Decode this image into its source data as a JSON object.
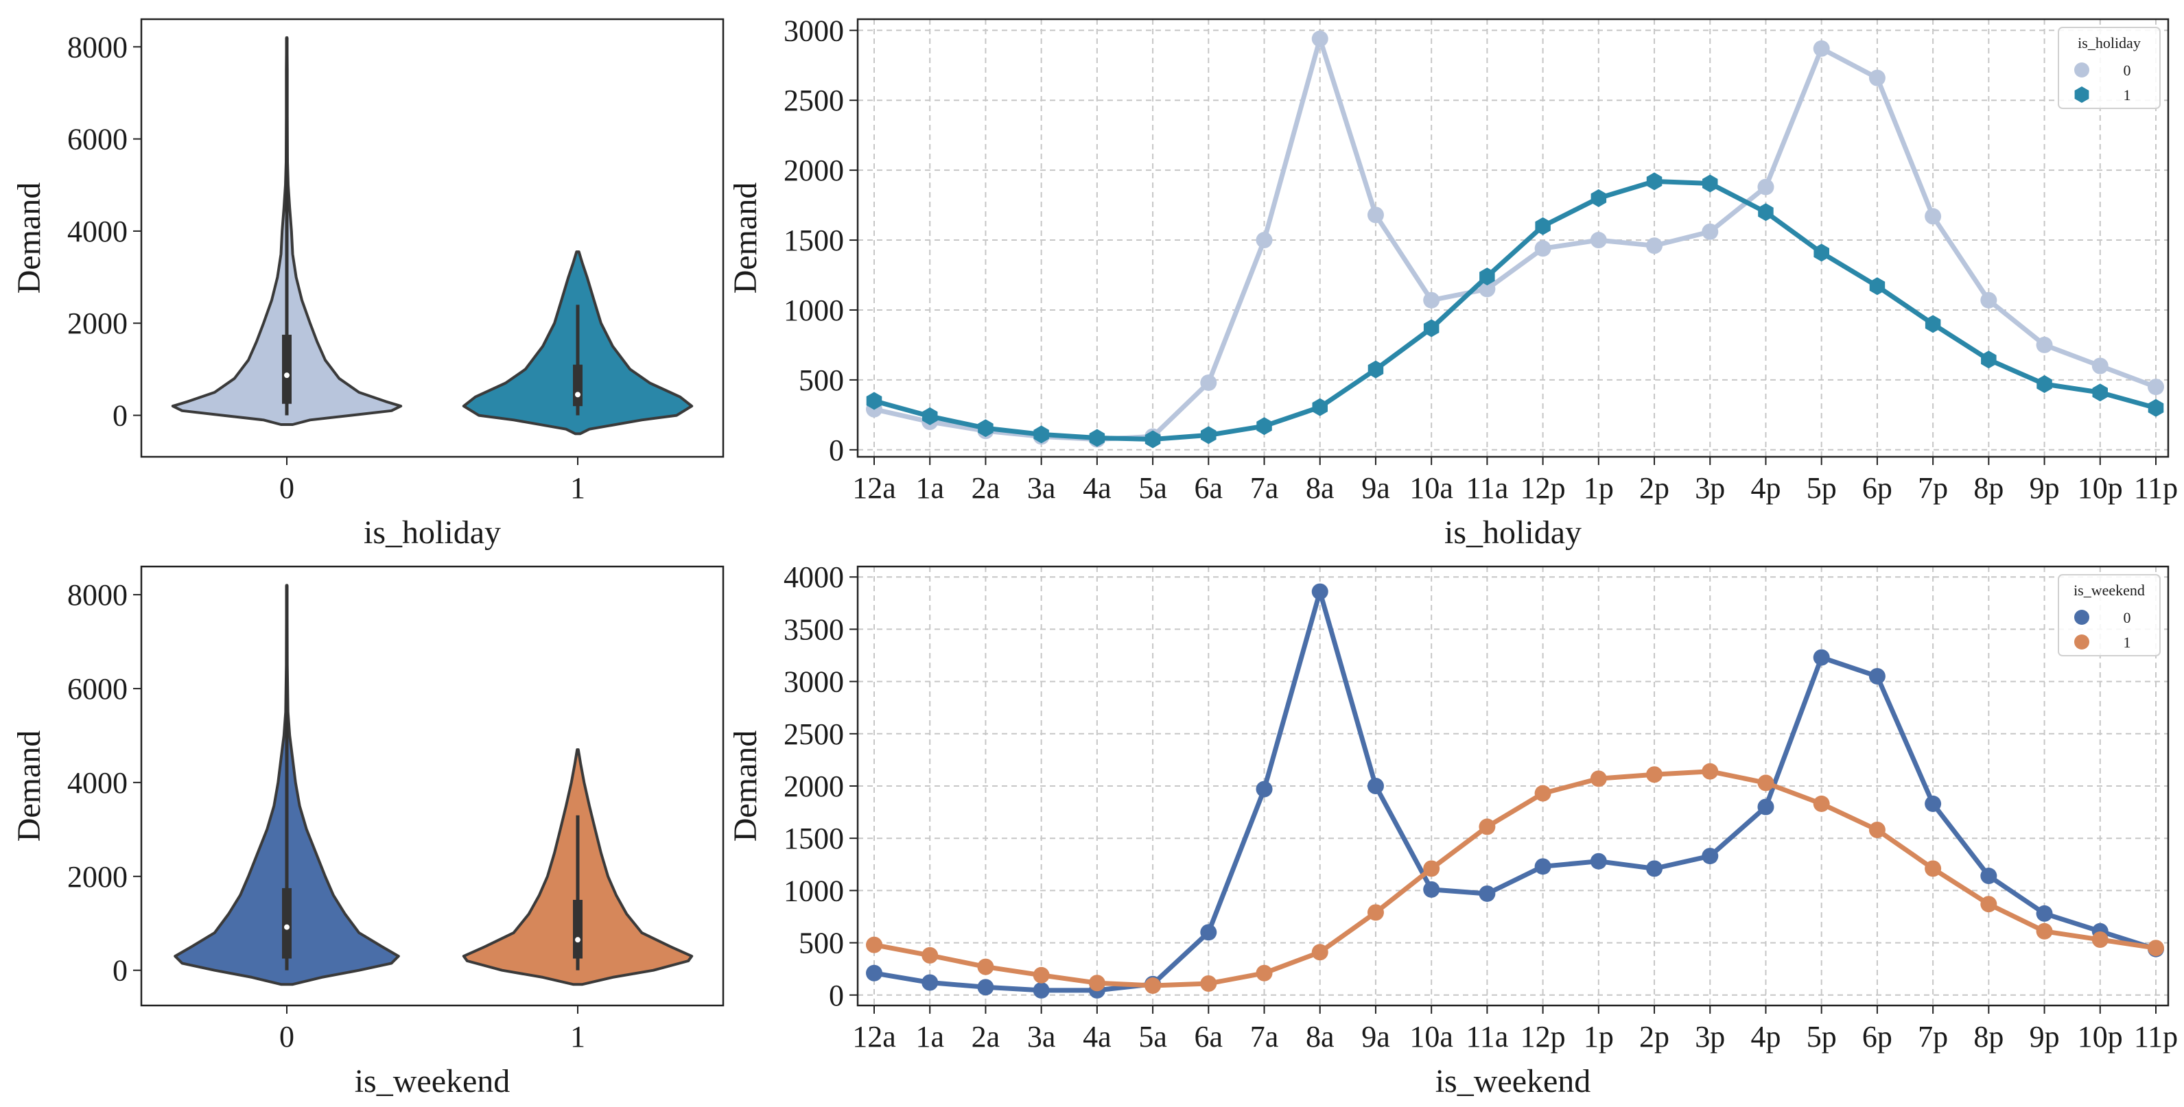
{
  "hours": [
    "12a",
    "1a",
    "2a",
    "3a",
    "4a",
    "5a",
    "6a",
    "7a",
    "8a",
    "9a",
    "10a",
    "11a",
    "12p",
    "1p",
    "2p",
    "3p",
    "4p",
    "5p",
    "6p",
    "7p",
    "8p",
    "9p",
    "10p",
    "11p"
  ],
  "chart_data": [
    {
      "id": "violin_holiday",
      "type": "violin",
      "xlabel": "is_holiday",
      "ylabel": "Demand",
      "categories": [
        "0",
        "1"
      ],
      "ylim": [
        -900,
        8600
      ],
      "yticks": [
        0,
        2000,
        4000,
        6000,
        8000
      ],
      "series": [
        {
          "name": "0",
          "color": "#b8c5dc",
          "profile": [
            [
              -200,
              0.05
            ],
            [
              -100,
              0.2
            ],
            [
              0,
              0.55
            ],
            [
              100,
              0.9
            ],
            [
              200,
              0.98
            ],
            [
              300,
              0.85
            ],
            [
              500,
              0.62
            ],
            [
              800,
              0.45
            ],
            [
              1200,
              0.33
            ],
            [
              1600,
              0.26
            ],
            [
              2000,
              0.2
            ],
            [
              2500,
              0.13
            ],
            [
              3000,
              0.08
            ],
            [
              3500,
              0.05
            ],
            [
              4000,
              0.04
            ],
            [
              4500,
              0.025
            ],
            [
              5000,
              0.012
            ],
            [
              5500,
              0.006
            ],
            [
              6500,
              0.004
            ],
            [
              7500,
              0.004
            ],
            [
              8200,
              0.002
            ]
          ],
          "box": {
            "min": 0,
            "q1": 250,
            "median": 870,
            "q3": 1750,
            "max": 3800,
            "whisker_top": 8200
          }
        },
        {
          "name": "1",
          "color": "#2a87a8",
          "profile": [
            [
              -400,
              0.02
            ],
            [
              -300,
              0.1
            ],
            [
              -100,
              0.55
            ],
            [
              0,
              0.85
            ],
            [
              200,
              0.98
            ],
            [
              400,
              0.88
            ],
            [
              700,
              0.62
            ],
            [
              1000,
              0.45
            ],
            [
              1500,
              0.3
            ],
            [
              2000,
              0.2
            ],
            [
              2500,
              0.14
            ],
            [
              3000,
              0.08
            ],
            [
              3300,
              0.04
            ],
            [
              3550,
              0.01
            ]
          ],
          "box": {
            "min": 0,
            "q1": 200,
            "median": 450,
            "q3": 1100,
            "max": 2400,
            "whisker_top": 2400
          }
        }
      ]
    },
    {
      "id": "line_holiday",
      "type": "line",
      "xlabel": "is_holiday",
      "ylabel": "Demand",
      "legend_title": "is_holiday",
      "legend_position": "top-right",
      "ylim": [
        -50,
        3080
      ],
      "yticks": [
        0,
        500,
        1000,
        1500,
        2000,
        2500,
        3000
      ],
      "series": [
        {
          "name": "0",
          "color": "#b8c5dc",
          "marker": "circle",
          "values": [
            290,
            200,
            135,
            95,
            75,
            95,
            480,
            1500,
            2940,
            1680,
            1070,
            1150,
            1440,
            1500,
            1460,
            1560,
            1880,
            2870,
            2660,
            1670,
            1070,
            750,
            600,
            450
          ]
        },
        {
          "name": "1",
          "color": "#2a87a8",
          "marker": "hexagon",
          "values": [
            350,
            240,
            155,
            110,
            85,
            75,
            105,
            170,
            305,
            575,
            870,
            1240,
            1600,
            1800,
            1920,
            1905,
            1700,
            1410,
            1170,
            900,
            645,
            470,
            410,
            300
          ]
        }
      ]
    },
    {
      "id": "violin_weekend",
      "type": "violin",
      "xlabel": "is_weekend",
      "ylabel": "Demand",
      "categories": [
        "0",
        "1"
      ],
      "ylim": [
        -750,
        8600
      ],
      "yticks": [
        0,
        2000,
        4000,
        6000,
        8000
      ],
      "series": [
        {
          "name": "0",
          "color": "#4a6ea8",
          "profile": [
            [
              -300,
              0.05
            ],
            [
              -150,
              0.3
            ],
            [
              0,
              0.62
            ],
            [
              150,
              0.9
            ],
            [
              300,
              0.96
            ],
            [
              500,
              0.82
            ],
            [
              800,
              0.62
            ],
            [
              1200,
              0.5
            ],
            [
              1600,
              0.4
            ],
            [
              2000,
              0.33
            ],
            [
              2500,
              0.25
            ],
            [
              3000,
              0.17
            ],
            [
              3500,
              0.11
            ],
            [
              4000,
              0.075
            ],
            [
              4500,
              0.05
            ],
            [
              5000,
              0.025
            ],
            [
              5500,
              0.01
            ],
            [
              6500,
              0.004
            ],
            [
              7500,
              0.003
            ],
            [
              8200,
              0.002
            ]
          ],
          "box": {
            "min": 0,
            "q1": 250,
            "median": 920,
            "q3": 1750,
            "max": 4000,
            "whisker_top": 8200
          }
        },
        {
          "name": "1",
          "color": "#d6875a",
          "profile": [
            [
              -300,
              0.04
            ],
            [
              -150,
              0.3
            ],
            [
              0,
              0.65
            ],
            [
              200,
              0.95
            ],
            [
              300,
              0.98
            ],
            [
              500,
              0.8
            ],
            [
              800,
              0.55
            ],
            [
              1200,
              0.42
            ],
            [
              1600,
              0.33
            ],
            [
              2000,
              0.26
            ],
            [
              2500,
              0.2
            ],
            [
              3000,
              0.15
            ],
            [
              3500,
              0.1
            ],
            [
              4000,
              0.055
            ],
            [
              4400,
              0.025
            ],
            [
              4700,
              0.005
            ]
          ],
          "box": {
            "min": 0,
            "q1": 250,
            "median": 650,
            "q3": 1500,
            "max": 3300,
            "whisker_top": 3300
          }
        }
      ]
    },
    {
      "id": "line_weekend",
      "type": "line",
      "xlabel": "is_weekend",
      "ylabel": "Demand",
      "legend_title": "is_weekend",
      "legend_position": "top-right",
      "ylim": [
        -100,
        4100
      ],
      "yticks": [
        0,
        500,
        1000,
        1500,
        2000,
        2500,
        3000,
        3500,
        4000
      ],
      "series": [
        {
          "name": "0",
          "color": "#4a6ea8",
          "marker": "circle",
          "values": [
            210,
            120,
            75,
            45,
            45,
            105,
            600,
            1970,
            3860,
            2000,
            1010,
            970,
            1230,
            1280,
            1210,
            1330,
            1800,
            3230,
            3050,
            1830,
            1140,
            780,
            610,
            440
          ]
        },
        {
          "name": "1",
          "color": "#d6875a",
          "marker": "circle",
          "values": [
            480,
            380,
            270,
            190,
            115,
            90,
            110,
            210,
            410,
            790,
            1210,
            1610,
            1930,
            2070,
            2110,
            2140,
            2030,
            1830,
            1580,
            1210,
            870,
            610,
            530,
            450
          ]
        }
      ]
    }
  ]
}
